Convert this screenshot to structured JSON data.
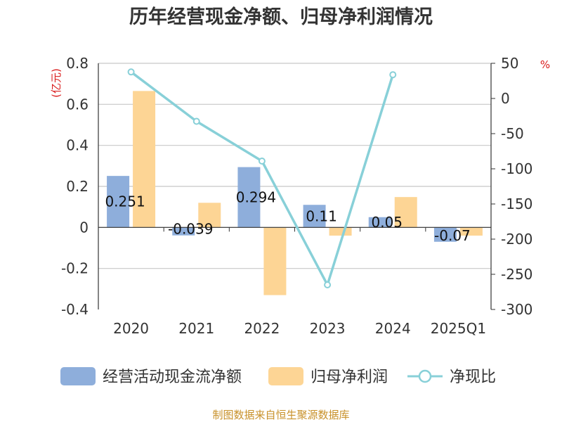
{
  "chart_data": {
    "type": "bar",
    "title": "历年经营现金净额、归母净利润情况",
    "left_unit": "(亿元)",
    "right_unit": "%",
    "categories": [
      "2020",
      "2021",
      "2022",
      "2023",
      "2024",
      "2025Q1"
    ],
    "ylim_left": [
      -0.4,
      0.8
    ],
    "yticks_left": [
      "0.8",
      "0.6",
      "0.4",
      "0.2",
      "0",
      "-0.2",
      "-0.4"
    ],
    "ylim_right": [
      -300,
      50
    ],
    "yticks_right": [
      "50",
      "0",
      "-50",
      "-100",
      "-150",
      "-200",
      "-250",
      "-300"
    ],
    "grid": true,
    "legend_position": "bottom",
    "series": [
      {
        "name": "经营活动现金流净额",
        "type": "bar",
        "axis": "left",
        "color": "#8eaedb",
        "values": [
          0.251,
          -0.039,
          0.294,
          0.11,
          0.05,
          -0.07
        ],
        "labels": [
          "0.251",
          "-0.039",
          "0.294",
          "0.11",
          "0.05",
          "-0.07"
        ]
      },
      {
        "name": "归母净利润",
        "type": "bar",
        "axis": "left",
        "color": "#fdd595",
        "values": [
          0.665,
          0.12,
          -0.33,
          -0.04,
          0.148,
          -0.04
        ]
      },
      {
        "name": "净现比",
        "type": "line",
        "axis": "right",
        "color": "#88d0d8",
        "values": [
          37.7,
          -32.5,
          -89,
          -265,
          33.8,
          null
        ]
      }
    ],
    "source": "制图数据来自恒生聚源数据库"
  }
}
